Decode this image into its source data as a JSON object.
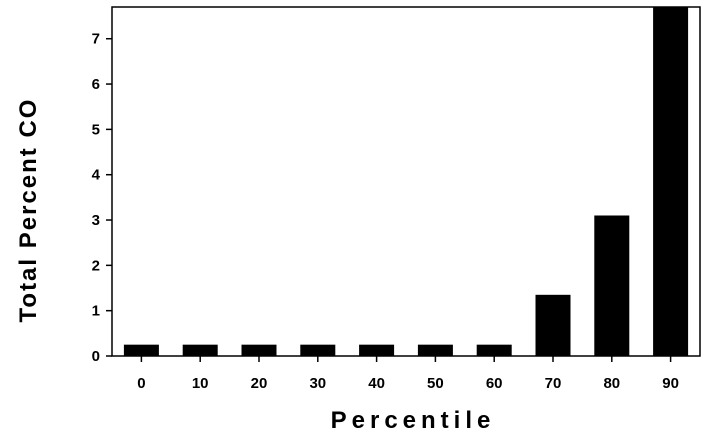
{
  "chart_data": {
    "type": "bar",
    "categories": [
      "0",
      "10",
      "20",
      "30",
      "40",
      "50",
      "60",
      "70",
      "80",
      "90"
    ],
    "values": [
      0.25,
      0.25,
      0.25,
      0.25,
      0.25,
      0.25,
      0.25,
      1.35,
      3.1,
      7.7
    ],
    "xlabel": "Percentile",
    "ylabel": "Total Percent CO",
    "ylim": [
      0,
      7.7
    ],
    "yticks": [
      0,
      1,
      2,
      3,
      4,
      5,
      6,
      7
    ],
    "grid": false,
    "bar_color": "#000000"
  }
}
